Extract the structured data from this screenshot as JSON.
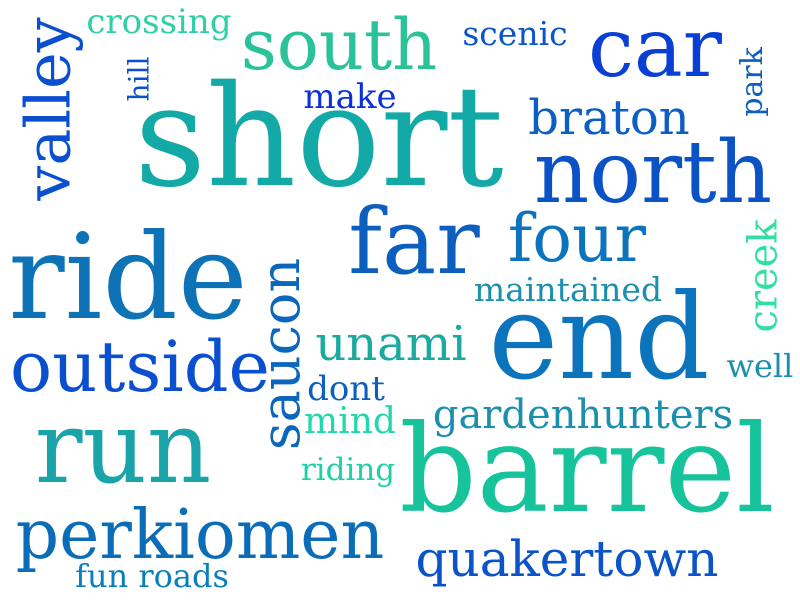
{
  "words": [
    {
      "text": "short",
      "color": "#12a9a6",
      "rotated": false
    },
    {
      "text": "barrel",
      "color": "#16c39b",
      "rotated": false
    },
    {
      "text": "ride",
      "color": "#0d73b6",
      "rotated": false
    },
    {
      "text": "run",
      "color": "#1aa3a8",
      "rotated": false
    },
    {
      "text": "end",
      "color": "#0c74bd",
      "rotated": false
    },
    {
      "text": "north",
      "color": "#0b52c6",
      "rotated": false
    },
    {
      "text": "car",
      "color": "#0a3fd6",
      "rotated": false
    },
    {
      "text": "far",
      "color": "#0c5ebf",
      "rotated": false
    },
    {
      "text": "four",
      "color": "#0c74bd",
      "rotated": false
    },
    {
      "text": "south",
      "color": "#2ac299",
      "rotated": false
    },
    {
      "text": "perkiomen",
      "color": "#0b6cb8",
      "rotated": false
    },
    {
      "text": "outside",
      "color": "#0a4fd0",
      "rotated": false
    },
    {
      "text": "quakertown",
      "color": "#0a53c8",
      "rotated": false
    },
    {
      "text": "valley",
      "color": "#0a4fd0",
      "rotated": true
    },
    {
      "text": "saucon",
      "color": "#0b66bd",
      "rotated": true
    },
    {
      "text": "creek",
      "color": "#2fe0a0",
      "rotated": true
    },
    {
      "text": "braton",
      "color": "#0b5ec4",
      "rotated": false
    },
    {
      "text": "unami",
      "color": "#1aaa9f",
      "rotated": false
    },
    {
      "text": "gardenhunters",
      "color": "#1a8fae",
      "rotated": false
    },
    {
      "text": "maintained",
      "color": "#1a8fae",
      "rotated": false
    },
    {
      "text": "crossing",
      "color": "#2fd0a6",
      "rotated": false
    },
    {
      "text": "scenic",
      "color": "#0b54c9",
      "rotated": false
    },
    {
      "text": "make",
      "color": "#0a2fdc",
      "rotated": false
    },
    {
      "text": "hill",
      "color": "#0a4fd0",
      "rotated": true
    },
    {
      "text": "park",
      "color": "#0c5ebf",
      "rotated": true
    },
    {
      "text": "dont",
      "color": "#0c5ebf",
      "rotated": false
    },
    {
      "text": "mind",
      "color": "#1ed9a8",
      "rotated": false
    },
    {
      "text": "riding",
      "color": "#1ed0a4",
      "rotated": false
    },
    {
      "text": "well",
      "color": "#1a8fae",
      "rotated": false
    },
    {
      "text": "fun roads",
      "color": "#0a7fbe",
      "rotated": false
    }
  ]
}
